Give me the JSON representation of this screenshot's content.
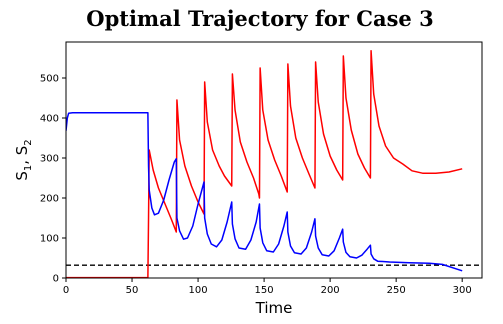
{
  "chart_data": {
    "type": "line",
    "title": "Optimal Trajectory for Case 3",
    "xlabel": "Time",
    "ylabel_parts": [
      "S",
      "1",
      ", S",
      "2"
    ],
    "xlim": [
      0,
      315
    ],
    "ylim": [
      0,
      590
    ],
    "x_ticks": [
      0,
      50,
      100,
      150,
      200,
      250,
      300
    ],
    "y_ticks": [
      0,
      100,
      200,
      300,
      400,
      500
    ],
    "series": [
      {
        "color": "#ff0000",
        "style": "solid",
        "points": [
          [
            0,
            1
          ],
          [
            61,
            1
          ],
          [
            62,
            0
          ],
          [
            62.5,
            150
          ],
          [
            63,
            320
          ],
          [
            66,
            270
          ],
          [
            70,
            225
          ],
          [
            75,
            185
          ],
          [
            80,
            145
          ],
          [
            83.5,
            115
          ],
          [
            84,
            445
          ],
          [
            86,
            345
          ],
          [
            90,
            280
          ],
          [
            95,
            230
          ],
          [
            100,
            190
          ],
          [
            104.5,
            160
          ],
          [
            105,
            490
          ],
          [
            107,
            390
          ],
          [
            111,
            320
          ],
          [
            116,
            280
          ],
          [
            120,
            255
          ],
          [
            125.5,
            230
          ],
          [
            126,
            510
          ],
          [
            128,
            420
          ],
          [
            132,
            340
          ],
          [
            137,
            290
          ],
          [
            142,
            250
          ],
          [
            146,
            210
          ],
          [
            146.5,
            200
          ],
          [
            147,
            525
          ],
          [
            149,
            420
          ],
          [
            153,
            345
          ],
          [
            158,
            295
          ],
          [
            163,
            255
          ],
          [
            167.5,
            215
          ],
          [
            168,
            535
          ],
          [
            170,
            430
          ],
          [
            174,
            350
          ],
          [
            179,
            300
          ],
          [
            184,
            260
          ],
          [
            188.5,
            225
          ],
          [
            189,
            540
          ],
          [
            191,
            440
          ],
          [
            195,
            360
          ],
          [
            200,
            305
          ],
          [
            205,
            270
          ],
          [
            209.5,
            245
          ],
          [
            210,
            555
          ],
          [
            212,
            450
          ],
          [
            216,
            370
          ],
          [
            221,
            310
          ],
          [
            226,
            275
          ],
          [
            230.5,
            250
          ],
          [
            231,
            568
          ],
          [
            233,
            460
          ],
          [
            237,
            380
          ],
          [
            242,
            330
          ],
          [
            248,
            300
          ],
          [
            255,
            285
          ],
          [
            262,
            268
          ],
          [
            270,
            262
          ],
          [
            280,
            262
          ],
          [
            290,
            265
          ],
          [
            300,
            273
          ]
        ]
      },
      {
        "color": "#0000ff",
        "style": "solid",
        "points": [
          [
            0,
            368
          ],
          [
            1,
            400
          ],
          [
            2,
            412
          ],
          [
            5,
            413
          ],
          [
            60,
            413
          ],
          [
            62,
            413
          ],
          [
            62.5,
            280
          ],
          [
            63,
            220
          ],
          [
            65,
            175
          ],
          [
            67,
            158
          ],
          [
            70,
            162
          ],
          [
            74,
            195
          ],
          [
            78,
            245
          ],
          [
            82,
            290
          ],
          [
            83.5,
            298
          ],
          [
            84,
            150
          ],
          [
            86,
            118
          ],
          [
            89,
            97
          ],
          [
            92,
            100
          ],
          [
            96,
            130
          ],
          [
            100,
            185
          ],
          [
            104.5,
            240
          ],
          [
            105,
            150
          ],
          [
            107,
            110
          ],
          [
            110,
            85
          ],
          [
            114,
            78
          ],
          [
            118,
            95
          ],
          [
            122,
            140
          ],
          [
            125.5,
            190
          ],
          [
            126,
            135
          ],
          [
            128,
            98
          ],
          [
            131,
            75
          ],
          [
            136,
            72
          ],
          [
            140,
            95
          ],
          [
            144,
            140
          ],
          [
            146.5,
            185
          ],
          [
            147,
            125
          ],
          [
            149,
            88
          ],
          [
            152,
            68
          ],
          [
            157,
            65
          ],
          [
            161,
            85
          ],
          [
            165,
            130
          ],
          [
            167.5,
            165
          ],
          [
            168,
            115
          ],
          [
            170,
            80
          ],
          [
            173,
            63
          ],
          [
            178,
            60
          ],
          [
            182,
            75
          ],
          [
            186,
            115
          ],
          [
            188.5,
            148
          ],
          [
            189,
            105
          ],
          [
            191,
            75
          ],
          [
            194,
            58
          ],
          [
            199,
            55
          ],
          [
            203,
            68
          ],
          [
            207,
            100
          ],
          [
            209.5,
            122
          ],
          [
            210,
            90
          ],
          [
            212,
            64
          ],
          [
            215,
            53
          ],
          [
            220,
            50
          ],
          [
            224,
            57
          ],
          [
            228,
            72
          ],
          [
            230.5,
            82
          ],
          [
            231,
            60
          ],
          [
            233,
            48
          ],
          [
            236,
            42
          ],
          [
            245,
            40
          ],
          [
            260,
            38
          ],
          [
            275,
            37
          ],
          [
            285,
            34
          ],
          [
            300,
            18
          ]
        ]
      }
    ],
    "reference_lines": [
      {
        "y": 32,
        "color": "#000000",
        "style": "dashed"
      }
    ],
    "grid": false,
    "legend": "none"
  }
}
